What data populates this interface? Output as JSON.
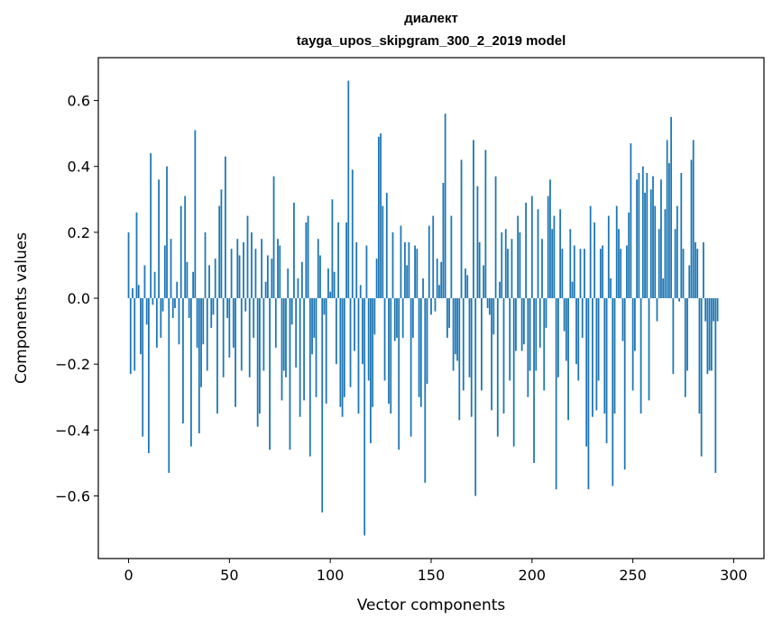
{
  "chart_data": {
    "type": "bar",
    "title_line1": "диалект",
    "title_line2": "tayga_upos_skipgram_300_2_2019 model",
    "xlabel": "Vector components",
    "ylabel": "Components values",
    "xlim": [
      -15,
      315
    ],
    "ylim": [
      -0.79,
      0.73
    ],
    "xticks": [
      0,
      50,
      100,
      150,
      200,
      250,
      300
    ],
    "xtick_labels": [
      "0",
      "50",
      "100",
      "150",
      "200",
      "250",
      "300"
    ],
    "yticks": [
      -0.6,
      -0.4,
      -0.2,
      0.0,
      0.2,
      0.4,
      0.6
    ],
    "ytick_labels": [
      "−0.6",
      "−0.4",
      "−0.2",
      "0.0",
      "0.2",
      "0.4",
      "0.6"
    ],
    "bar_color": "#1f77b4",
    "values": [
      0.2,
      -0.23,
      0.03,
      -0.22,
      0.26,
      0.04,
      -0.17,
      -0.42,
      0.1,
      -0.08,
      -0.47,
      0.44,
      -0.02,
      0.08,
      -0.15,
      0.36,
      -0.12,
      -0.04,
      0.16,
      0.4,
      -0.53,
      0.18,
      -0.06,
      -0.03,
      0.05,
      -0.14,
      0.28,
      -0.38,
      0.31,
      0.11,
      -0.06,
      -0.45,
      0.08,
      0.51,
      -0.15,
      -0.41,
      -0.27,
      -0.14,
      0.2,
      -0.22,
      0.1,
      -0.09,
      -0.05,
      0.12,
      -0.35,
      0.28,
      0.33,
      -0.24,
      0.43,
      -0.06,
      -0.18,
      0.15,
      -0.15,
      -0.33,
      0.18,
      0.13,
      -0.22,
      0.17,
      -0.04,
      0.25,
      -0.24,
      0.2,
      -0.12,
      0.15,
      -0.39,
      -0.35,
      0.18,
      -0.22,
      0.05,
      0.13,
      -0.46,
      0.12,
      0.37,
      -0.15,
      0.18,
      0.16,
      -0.31,
      -0.22,
      -0.24,
      0.09,
      -0.46,
      -0.08,
      0.29,
      -0.21,
      0.06,
      -0.36,
      0.11,
      -0.31,
      0.23,
      0.25,
      -0.48,
      -0.17,
      -0.12,
      -0.3,
      0.18,
      0.13,
      -0.65,
      -0.05,
      -0.32,
      0.09,
      0.02,
      0.3,
      0.08,
      -0.2,
      0.23,
      -0.33,
      -0.36,
      -0.3,
      0.23,
      0.66,
      -0.27,
      0.39,
      -0.16,
      0.17,
      -0.35,
      0.04,
      -0.2,
      -0.72,
      0.16,
      -0.25,
      -0.44,
      -0.33,
      -0.11,
      0.12,
      0.49,
      0.5,
      0.28,
      -0.25,
      0.32,
      -0.32,
      -0.35,
      0.2,
      -0.13,
      -0.12,
      -0.46,
      0.22,
      -0.12,
      0.17,
      0.1,
      0.17,
      -0.42,
      -0.12,
      0.16,
      0.15,
      -0.3,
      -0.33,
      0.06,
      -0.56,
      -0.26,
      0.22,
      -0.05,
      0.25,
      -0.04,
      0.12,
      0.04,
      0.11,
      0.35,
      0.56,
      -0.12,
      -0.09,
      0.25,
      -0.22,
      -0.17,
      -0.19,
      -0.37,
      0.42,
      -0.28,
      0.09,
      0.07,
      -0.24,
      -0.36,
      0.48,
      -0.6,
      0.34,
      0.17,
      -0.28,
      0.1,
      0.45,
      -0.03,
      -0.05,
      -0.34,
      -0.11,
      0.37,
      -0.42,
      0.05,
      0.2,
      -0.35,
      0.21,
      0.15,
      -0.25,
      0.18,
      -0.45,
      -0.16,
      0.25,
      0.2,
      -0.16,
      -0.14,
      0.29,
      -0.3,
      -0.22,
      0.31,
      -0.5,
      -0.22,
      0.27,
      -0.15,
      0.18,
      -0.28,
      -0.09,
      0.31,
      0.36,
      0.21,
      0.25,
      -0.58,
      -0.24,
      0.27,
      0.15,
      -0.1,
      -0.19,
      -0.37,
      0.21,
      0.05,
      0.16,
      -0.2,
      -0.25,
      0.15,
      -0.12,
      0.15,
      -0.45,
      -0.58,
      0.28,
      -0.36,
      0.23,
      -0.34,
      -0.25,
      0.15,
      0.16,
      -0.35,
      -0.44,
      0.25,
      0.06,
      -0.57,
      -0.35,
      0.28,
      0.21,
      0.15,
      -0.13,
      -0.52,
      0.16,
      0.26,
      0.47,
      -0.28,
      -0.16,
      0.36,
      0.38,
      -0.35,
      0.4,
      0.32,
      0.38,
      -0.31,
      0.33,
      0.37,
      0.28,
      -0.07,
      0.21,
      0.36,
      0.06,
      0.27,
      0.48,
      0.41,
      0.55,
      -0.23,
      0.21,
      0.28,
      -0.01,
      0.38,
      0.15,
      -0.3,
      -0.22,
      0.1,
      0.42,
      0.48,
      0.17,
      0.15,
      -0.35,
      -0.48,
      0.17,
      -0.07,
      -0.23,
      -0.22,
      -0.22,
      -0.07,
      -0.53,
      -0.07
    ]
  }
}
